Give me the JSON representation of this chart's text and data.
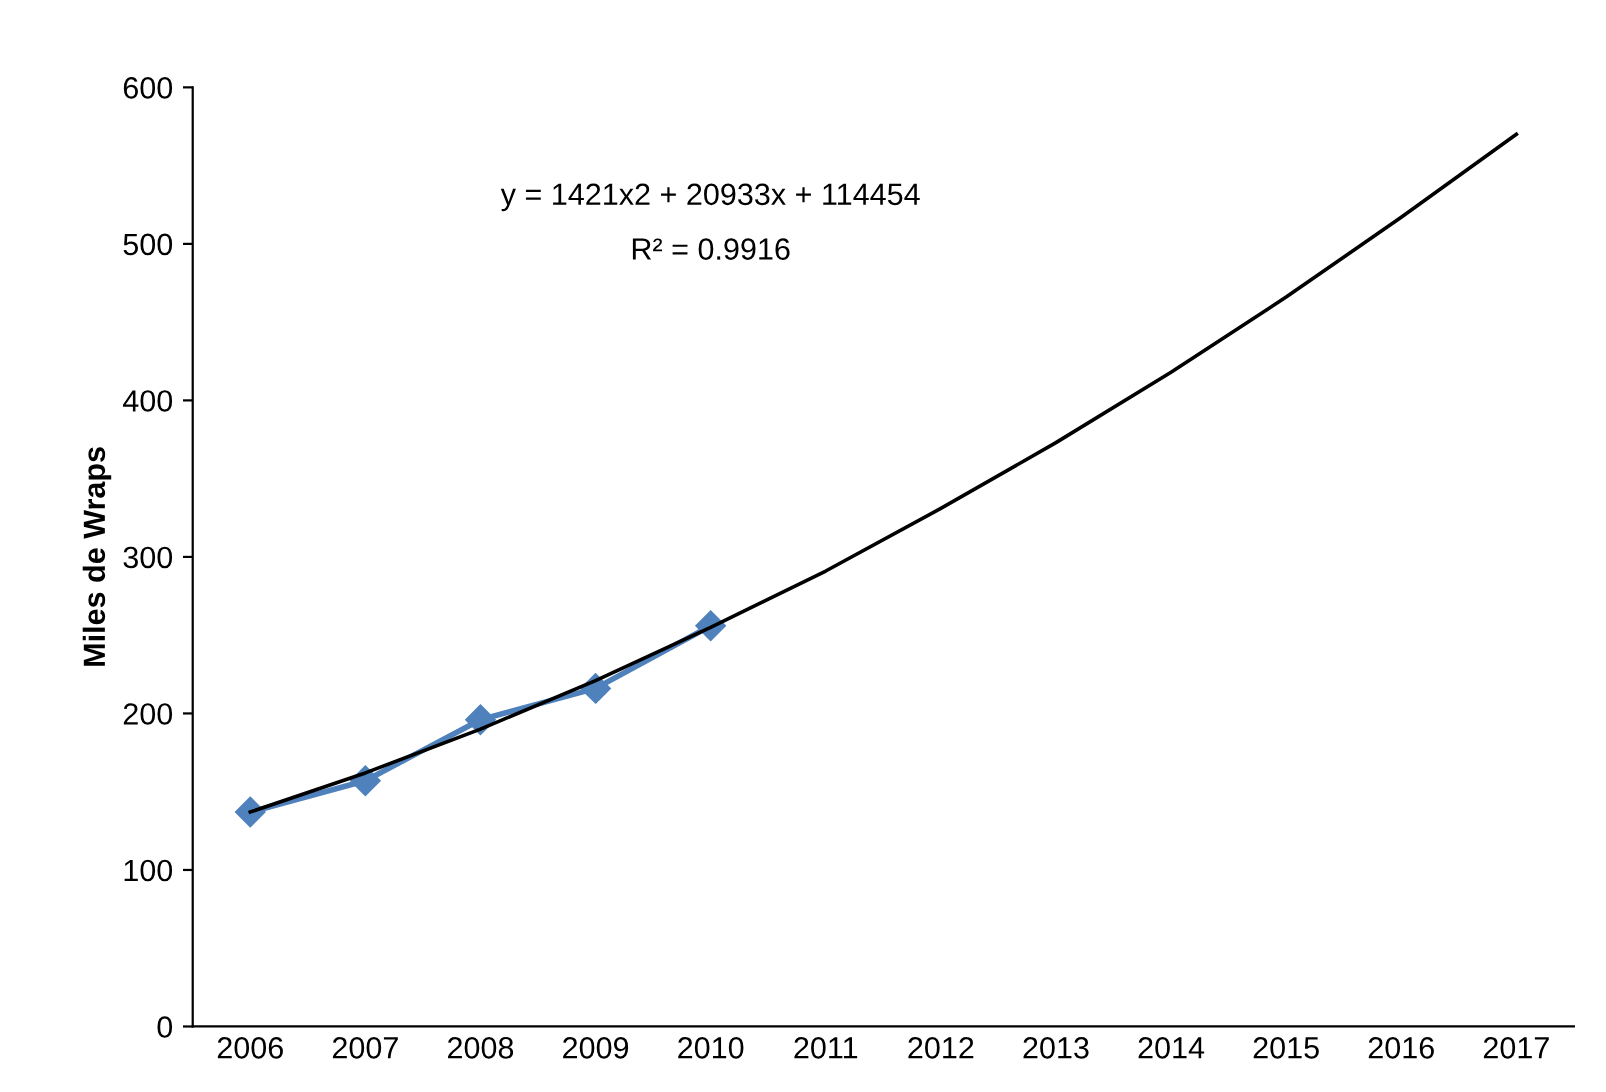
{
  "chart_data": {
    "type": "line",
    "ylabel": "Miles de Wraps",
    "categories": [
      "2006",
      "2007",
      "2008",
      "2009",
      "2010",
      "2011",
      "2012",
      "2013",
      "2014",
      "2015",
      "2016",
      "2017"
    ],
    "series": [
      {
        "color": "#4f81bd",
        "marker": "diamond",
        "values": [
          137,
          157,
          196,
          216,
          256,
          null,
          null,
          null,
          null,
          null,
          null,
          null
        ]
      },
      {
        "color": "#000000",
        "marker": "none",
        "values": [
          137,
          162,
          190,
          221,
          255,
          291,
          331,
          373,
          418,
          466,
          517,
          570
        ]
      }
    ],
    "ylim": [
      0,
      600
    ],
    "yticks": [
      0,
      100,
      200,
      300,
      400,
      500,
      600
    ],
    "grid": false,
    "legend": false,
    "annotations": [
      "y = 1421x2 + 20933x + 114454",
      "R² = 0.9916"
    ]
  }
}
